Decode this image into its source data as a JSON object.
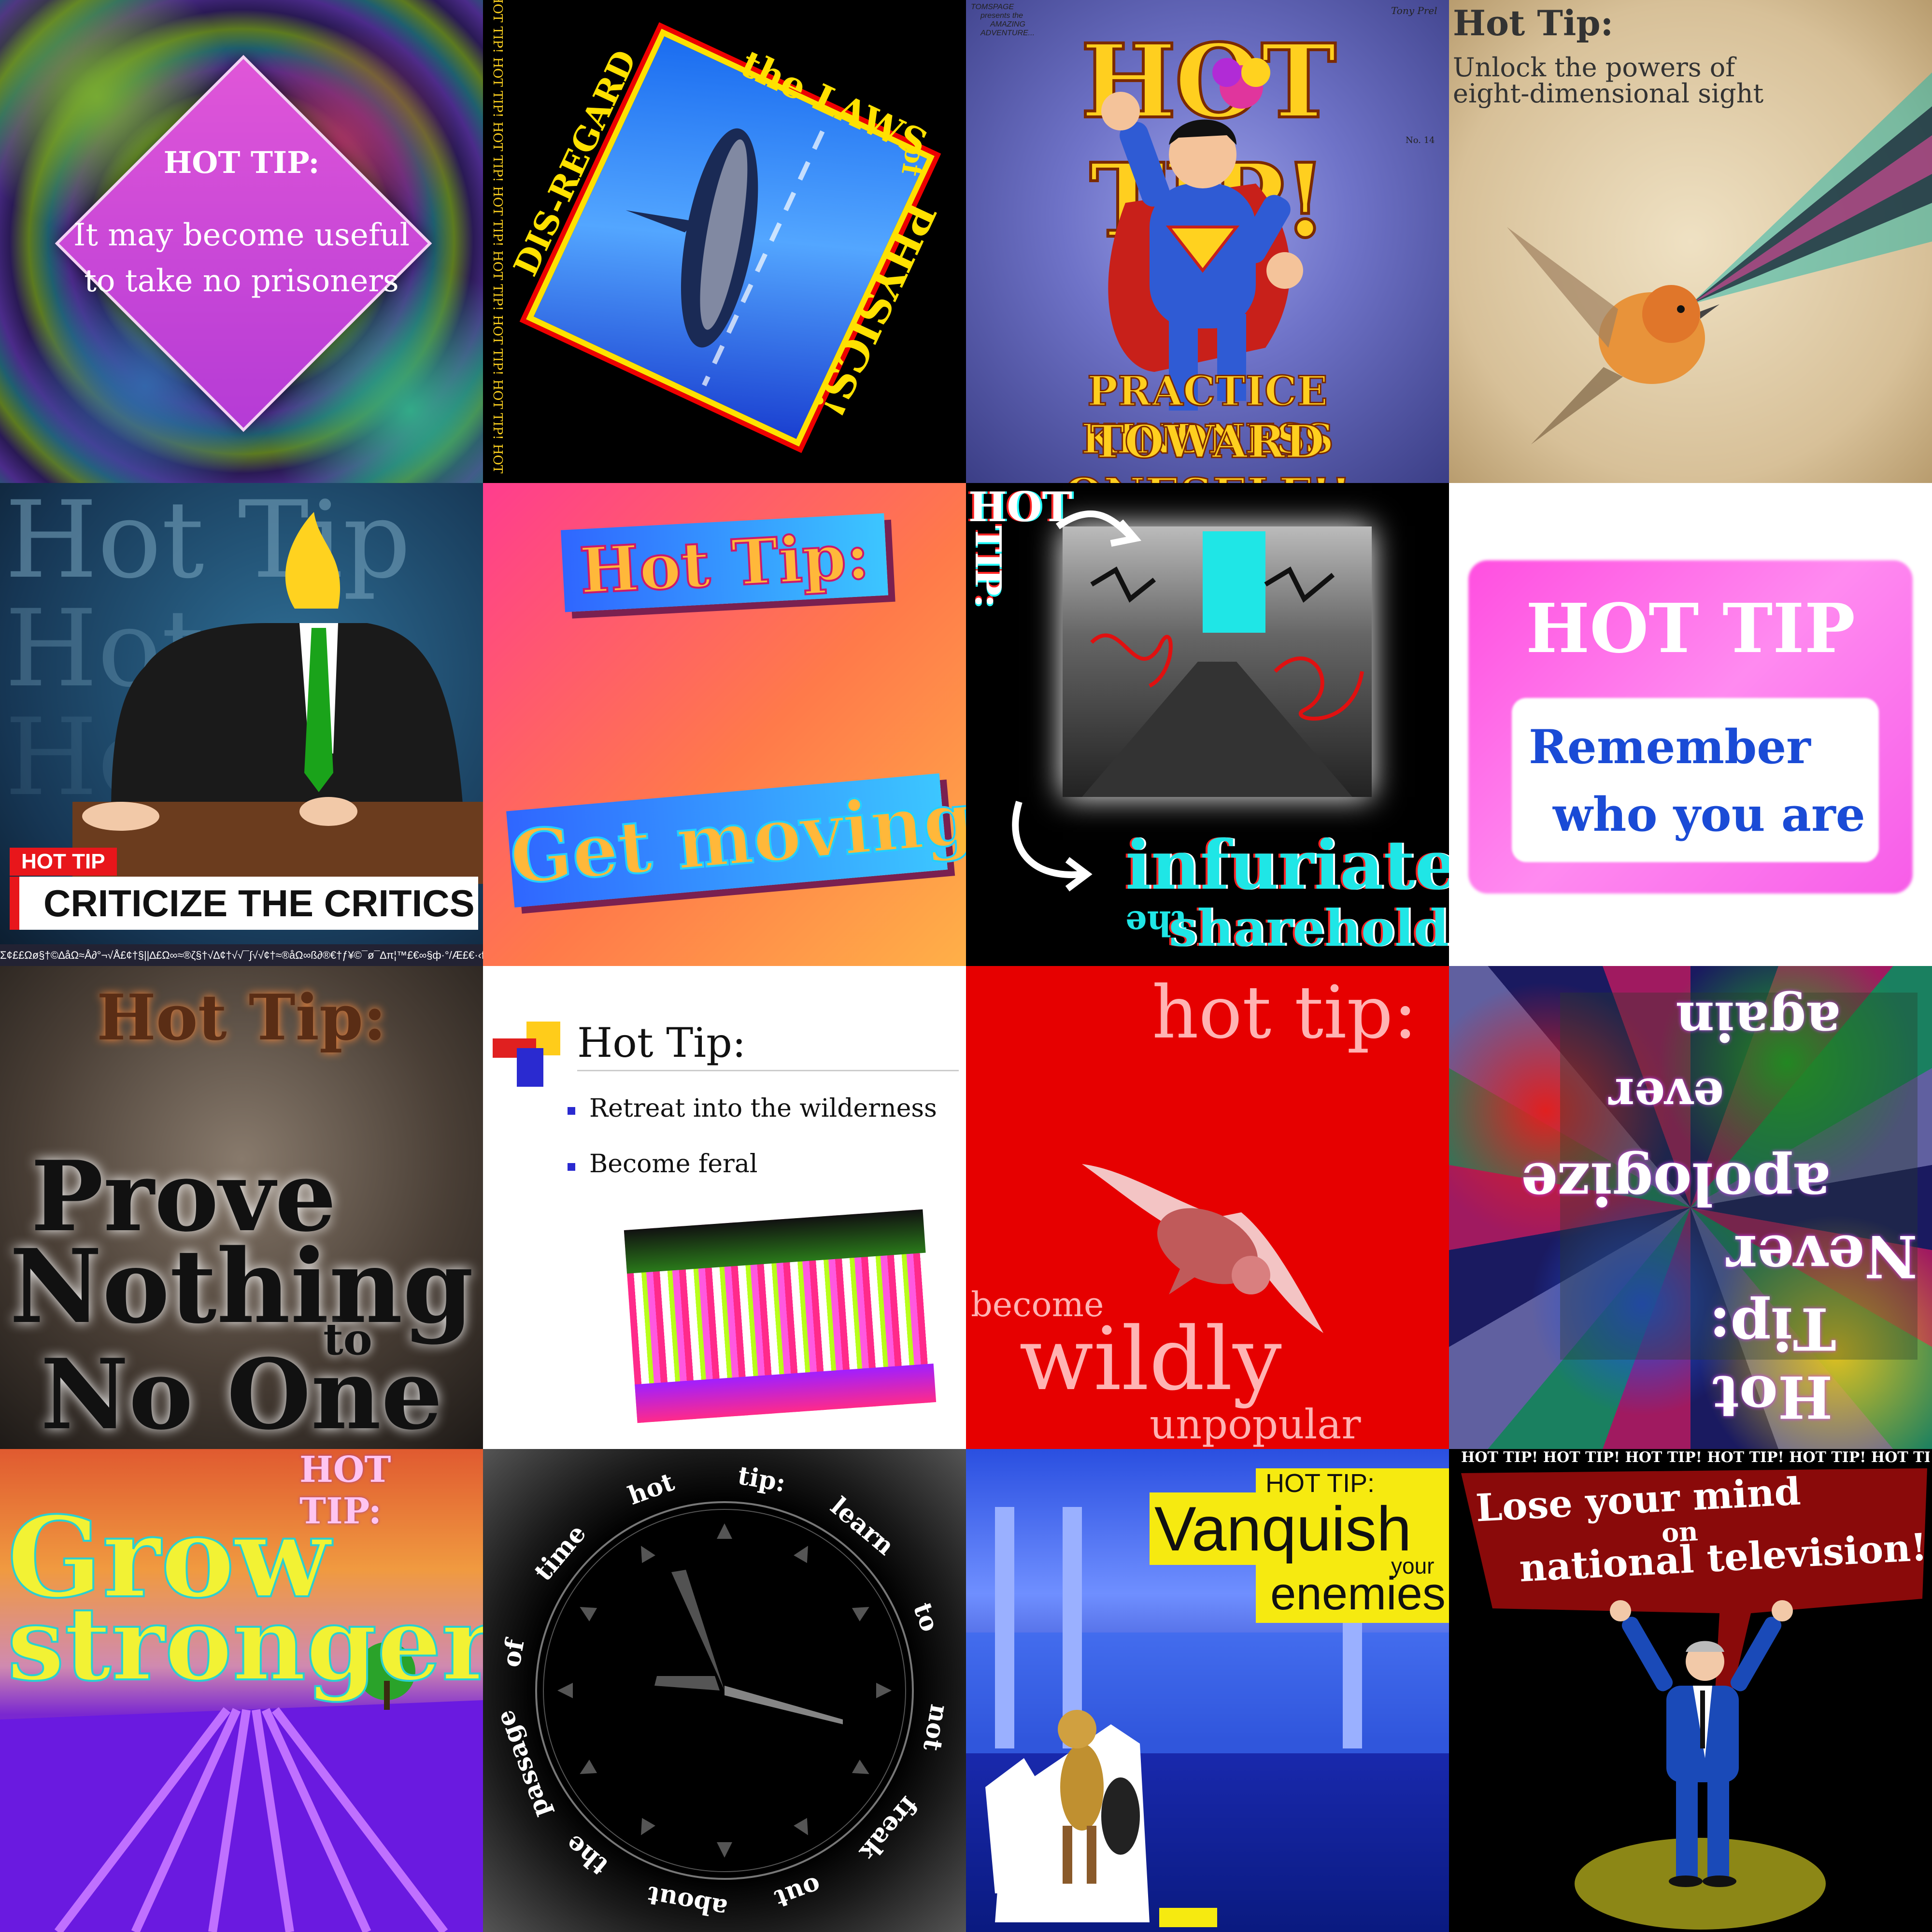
{
  "t1": {
    "title": "HOT TIP:",
    "line1": "It may become useful",
    "line2": "to take no prisoners"
  },
  "t2": {
    "side": "HOT TIP! HOT TIP! HOT TIP! HOT TIP! HOT TIP! HOT TIP! HOT TIP! HOT TIP! HOT TIP! HOT TIP! HOT TIP! HOT TIP! HOT TIP!",
    "disregard": "DIS-REGARD",
    "the_laws": "the LAWS",
    "of": "of",
    "physics": "PHYSICS!"
  },
  "t3": {
    "publisher": "TOMSPAGE",
    "presents": "presents the",
    "amazing": "AMAZING",
    "adventure": "ADVENTURE...",
    "signature": "Tony Prel",
    "issue": "No. 14",
    "title": "HOT TIP!",
    "line1": "PRACTICE KINDNESS",
    "line2": "TOWARD ONESELF!!"
  },
  "t4": {
    "title": "Hot Tip:",
    "line1": "Unlock the powers of",
    "line2": "eight-dimensional sight"
  },
  "t5": {
    "bg1": "Hot Tip",
    "bg2": "Hot",
    "bg3": "Hot",
    "badge": "HOT TIP",
    "caption": "CRITICIZE THE CRITICS",
    "ticker": "Σ¢££Ωø§†©∆åΩ≈Å∂°¬√Å£¢†§||∆£Ω∞≈®ζ§†√∆¢†√√¯∫√√¢†≈®åΩ∞ß∂®€†ƒ¥©¯ø¯∆π¦™£€∞§ф·°/Æ£€·‹ﬁΩÅ°"
  },
  "t6": {
    "title": "Hot Tip:",
    "action": "Get moving!"
  },
  "t7": {
    "hot": "HOT",
    "tip": "TIP:",
    "infuriate": "infuriate",
    "the": "the",
    "shareholders": "shareholders!"
  },
  "t8": {
    "title": "HOT TIP",
    "line1": "Remember",
    "line2": "who you are"
  },
  "t9": {
    "title": "Hot Tip:",
    "w1": "Prove",
    "w2": "Nothing",
    "w3": "to",
    "w4": "No One"
  },
  "t10": {
    "title": "Hot Tip:",
    "bullet1": "Retreat into the wilderness",
    "bullet2": "Become feral"
  },
  "t11": {
    "title": "hot tip:",
    "w1": "become",
    "w2": "wildly",
    "w3": "unpopular"
  },
  "t12": {
    "title": "Hot Tip:",
    "w1": "Never",
    "w2": "apologize",
    "w3": "ever",
    "w4": "again"
  },
  "t13": {
    "title": "HOT TIP:",
    "w1": "Grow",
    "w2": "stronger"
  },
  "t14": {
    "words": [
      "hot",
      "tip:",
      "learn",
      "to",
      "not",
      "freak",
      "out",
      "about",
      "the",
      "passage",
      "of",
      "time"
    ]
  },
  "t15": {
    "title": "HOT TIP:",
    "w1": "Vanquish",
    "w2": "your",
    "w3": "enemies"
  },
  "t16": {
    "banner": "HOT TIP! HOT TIP! HOT TIP! HOT TIP! HOT TIP! HOT TIP! HOT TIP!",
    "line1": "Lose your mind",
    "line2": "on",
    "line3": "national television!"
  }
}
